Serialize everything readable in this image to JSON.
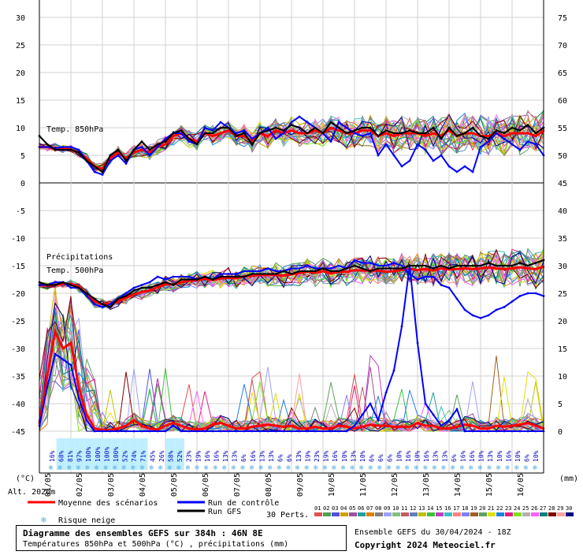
{
  "chart_data": {
    "type": "line",
    "title": "Diagramme des ensembles GEFS sur 384h : 46N 8E",
    "subtitle": "Températures 850hPa et 500hPa (°C) , précipitations (mm)",
    "run_info": "Ensemble GEFS du 30/04/2024 - 18Z",
    "copyright": "Copyright 2024 Meteociel.fr",
    "left_axis": {
      "unit": "(°C)",
      "ticks": [
        30,
        25,
        20,
        15,
        10,
        5,
        0,
        -5,
        -10,
        -15,
        -20,
        -25,
        -30,
        -35,
        -40,
        -45
      ],
      "range": [
        -45,
        30
      ]
    },
    "right_axis": {
      "unit": "(mm)",
      "ticks": [
        75,
        70,
        65,
        60,
        55,
        50,
        45,
        40,
        35,
        30,
        25,
        20,
        15,
        10,
        5,
        0
      ],
      "range": [
        0,
        75
      ]
    },
    "altitude_label": "Alt. 2026m",
    "annotations": {
      "t850": "Temp. 850hPa",
      "t500": "Temp. 500hPa",
      "precip": "Précipitations"
    },
    "dates": [
      "01/05",
      "02/05",
      "03/05",
      "04/05",
      "05/05",
      "06/05",
      "07/05",
      "08/05",
      "09/05",
      "10/05",
      "11/05",
      "12/05",
      "13/05",
      "14/05",
      "15/05",
      "16/05"
    ],
    "snow_risk_percent": [
      "16%",
      "68%",
      "81%",
      "97%",
      "100%",
      "100%",
      "100%",
      "100%",
      "52%",
      "74%",
      "71%",
      "45%",
      "26%",
      "58%",
      "52%",
      "23%",
      "19%",
      "16%",
      "16%",
      "13%",
      "13%",
      "6%",
      "16%",
      "13%",
      "13%",
      "6%",
      "6%",
      "13%",
      "19%",
      "23%",
      "19%",
      "16%",
      "10%",
      "13%",
      "10%",
      "6%",
      "6%",
      "6%",
      "10%",
      "16%",
      "10%",
      "16%",
      "13%",
      "13%",
      "6%",
      "16%",
      "16%",
      "10%",
      "13%",
      "10%",
      "16%",
      "10%",
      "6%",
      "10%"
    ],
    "legend": {
      "mean": "Moyenne des scénarios",
      "control": "Run de contrôle",
      "gfs": "Run GFS",
      "snow": "Risque neige",
      "perts_label": "30 Perts.",
      "pert_ids": [
        "01",
        "02",
        "03",
        "04",
        "05",
        "06",
        "07",
        "08",
        "09",
        "10",
        "11",
        "12",
        "13",
        "14",
        "15",
        "16",
        "17",
        "18",
        "19",
        "20",
        "21",
        "22",
        "23",
        "24",
        "25",
        "26",
        "27",
        "28",
        "29",
        "30"
      ]
    },
    "pert_colors": [
      "#e05050",
      "#50a050",
      "#5050e0",
      "#d0a000",
      "#a050a0",
      "#20a0a0",
      "#e08000",
      "#808080",
      "#a0a0ff",
      "#80c080",
      "#c06060",
      "#6080c0",
      "#c0c000",
      "#40c040",
      "#c040c0",
      "#40c0c0",
      "#ff8080",
      "#8080ff",
      "#a06020",
      "#60a060",
      "#e0e000",
      "#2080e0",
      "#e02080",
      "#80e020",
      "#b0b0b0",
      "#ff60ff",
      "#008080",
      "#800000",
      "#ffa0a0",
      "#000080"
    ],
    "series": [
      {
        "name": "Moyenne des scénarios",
        "color": "#ff0000",
        "width": 3,
        "t850": [
          6.5,
          6.5,
          6.2,
          6.3,
          6,
          5.5,
          4.5,
          3,
          2.5,
          4.5,
          5.5,
          4.5,
          5.5,
          6,
          5.5,
          6.5,
          7,
          8.5,
          9,
          8,
          7.5,
          9,
          8.5,
          9,
          9.5,
          8.5,
          8.5,
          7.5,
          9,
          8.5,
          9.5,
          9,
          9.5,
          9,
          9,
          9.5,
          9,
          10,
          9.5,
          9,
          9,
          9.5,
          9.5,
          8.5,
          9,
          8.5,
          9,
          9,
          9,
          8.5,
          9,
          8.5,
          9.5,
          8.5,
          9,
          9,
          8.5,
          8.5,
          9,
          8.5,
          9,
          9,
          9,
          8.5,
          9.5
        ],
        "t500": [
          -18.5,
          -18.6,
          -18.5,
          -18.3,
          -18.3,
          -18.8,
          -20.2,
          -21.5,
          -22,
          -21.9,
          -21.5,
          -20.8,
          -20.2,
          -19.8,
          -19.5,
          -18.9,
          -18.4,
          -18.4,
          -18,
          -17.7,
          -17.6,
          -17.4,
          -17.6,
          -17.3,
          -17.2,
          -17.3,
          -16.9,
          -16.8,
          -16.7,
          -16.6,
          -16.7,
          -16.8,
          -16.6,
          -16.3,
          -16.1,
          -16.3,
          -16,
          -16.4,
          -16.1,
          -16.1,
          -15.8,
          -15.9,
          -15.9,
          -15.9,
          -16.1,
          -16,
          -15.8,
          -15.6,
          -15.8,
          -15.6,
          -15.9,
          -15.5,
          -15.7,
          -15.6,
          -15.5,
          -15.6,
          -15.5,
          -15.3,
          -15.5,
          -15.6,
          -15.5,
          -15.3,
          -15.5,
          -15.6,
          -15.2
        ],
        "precip": [
          1.5,
          10,
          18,
          15,
          16,
          8,
          3,
          0.5,
          0.2,
          0.2,
          0.5,
          1,
          2,
          1,
          0.5,
          0.3,
          1,
          1.5,
          1,
          0.5,
          0.3,
          0.5,
          1.2,
          1.5,
          1,
          0.5,
          0.5,
          0.8,
          1,
          1.2,
          1,
          0.8,
          1,
          0.5,
          0.5,
          0.8,
          0.5,
          0.5,
          1,
          0.8,
          0.5,
          0.8,
          1.2,
          1,
          1,
          0.8,
          0.8,
          0.8,
          1.5,
          1,
          1,
          0.5,
          0.5,
          0.8,
          1.2,
          1,
          0.5,
          0.5,
          1,
          0.8,
          1,
          1.2,
          1.5,
          1,
          0.5
        ]
      },
      {
        "name": "Run de contrôle",
        "color": "#0000ff",
        "width": 2,
        "t850": [
          6.5,
          6.5,
          6.3,
          6.5,
          6.5,
          6,
          4,
          2,
          1.5,
          4,
          5,
          3.5,
          6,
          6.5,
          5,
          6.5,
          8,
          9,
          9,
          7.5,
          7,
          10,
          9.5,
          11,
          10,
          9,
          9.5,
          8,
          9,
          10,
          8,
          9,
          11,
          12,
          11,
          10,
          9,
          7.5,
          11,
          10,
          9,
          8.5,
          9,
          5,
          7,
          5,
          3,
          4,
          7,
          6,
          4,
          5,
          3,
          2,
          3,
          2,
          6.5,
          7.5,
          9,
          8,
          7,
          6,
          7.5,
          7,
          5
        ],
        "t500": [
          -18.5,
          -18.5,
          -18,
          -18,
          -19,
          -19,
          -20.5,
          -22,
          -22.5,
          -22,
          -21,
          -20,
          -19,
          -18.5,
          -18,
          -17,
          -17.5,
          -17,
          -17,
          -17,
          -17.5,
          -17,
          -17.5,
          -16.5,
          -16.5,
          -16.5,
          -16,
          -16,
          -16,
          -15.5,
          -16,
          -16,
          -15.5,
          -15.5,
          -15,
          -15.5,
          -15.5,
          -15.5,
          -15,
          -15.5,
          -14,
          -14.5,
          -14.5,
          -15,
          -15,
          -14.5,
          -15,
          -16.5,
          -17.5,
          -17,
          -17,
          -18.5,
          -19,
          -21,
          -23,
          -24,
          -24.5,
          -24,
          -23,
          -22.5,
          -21.5,
          -20.5,
          -20,
          -20,
          -20.5
        ],
        "precip": [
          1,
          8,
          14,
          13,
          12,
          6,
          2,
          0,
          0,
          0,
          0,
          0,
          0,
          0,
          0,
          0,
          0,
          1,
          0,
          0,
          0,
          0,
          0,
          0,
          0,
          0,
          0,
          0,
          0,
          0,
          0,
          0,
          0,
          0,
          0,
          0,
          0,
          0,
          0,
          0,
          1,
          3,
          5,
          2,
          7,
          11,
          19,
          30,
          16,
          5,
          3,
          1,
          2,
          4,
          0,
          0,
          0,
          0,
          0,
          0,
          0,
          0,
          0,
          0,
          0
        ]
      },
      {
        "name": "Run GFS",
        "color": "#000000",
        "width": 2,
        "t850": [
          8.5,
          7,
          6,
          6,
          6,
          5.5,
          4,
          3,
          2,
          5,
          6,
          4,
          6,
          7.5,
          6,
          7,
          7.5,
          9,
          9.5,
          8,
          7,
          9,
          9,
          10,
          10,
          8.5,
          9,
          7,
          9,
          9.5,
          10,
          9.5,
          10.5,
          10,
          9,
          10,
          9,
          11,
          10,
          9,
          9.5,
          10,
          10,
          8.5,
          9.5,
          9,
          9,
          9.5,
          9,
          9,
          10,
          8,
          10,
          8.5,
          9,
          10,
          8.5,
          8,
          9.5,
          9,
          10,
          9.5,
          10.5,
          9,
          10
        ],
        "t500": [
          -18,
          -18.5,
          -18.5,
          -18,
          -18.5,
          -19,
          -20,
          -21,
          -22,
          -22.5,
          -21,
          -20.5,
          -19.5,
          -19,
          -19,
          -18.5,
          -18,
          -18.5,
          -17.5,
          -17.5,
          -17.5,
          -17,
          -17.5,
          -17,
          -17,
          -17,
          -17,
          -16.5,
          -16.5,
          -16.5,
          -16.5,
          -16,
          -16.5,
          -16,
          -16,
          -16,
          -15.5,
          -16,
          -16,
          -15.5,
          -15,
          -15.5,
          -16,
          -15.5,
          -15.5,
          -15.5,
          -15.5,
          -15,
          -15,
          -15,
          -15.5,
          -15,
          -15.5,
          -15,
          -15,
          -15,
          -15,
          -14.5,
          -15,
          -15,
          -15,
          -14.5,
          -15,
          -14.5,
          -14
        ]
      }
    ]
  }
}
